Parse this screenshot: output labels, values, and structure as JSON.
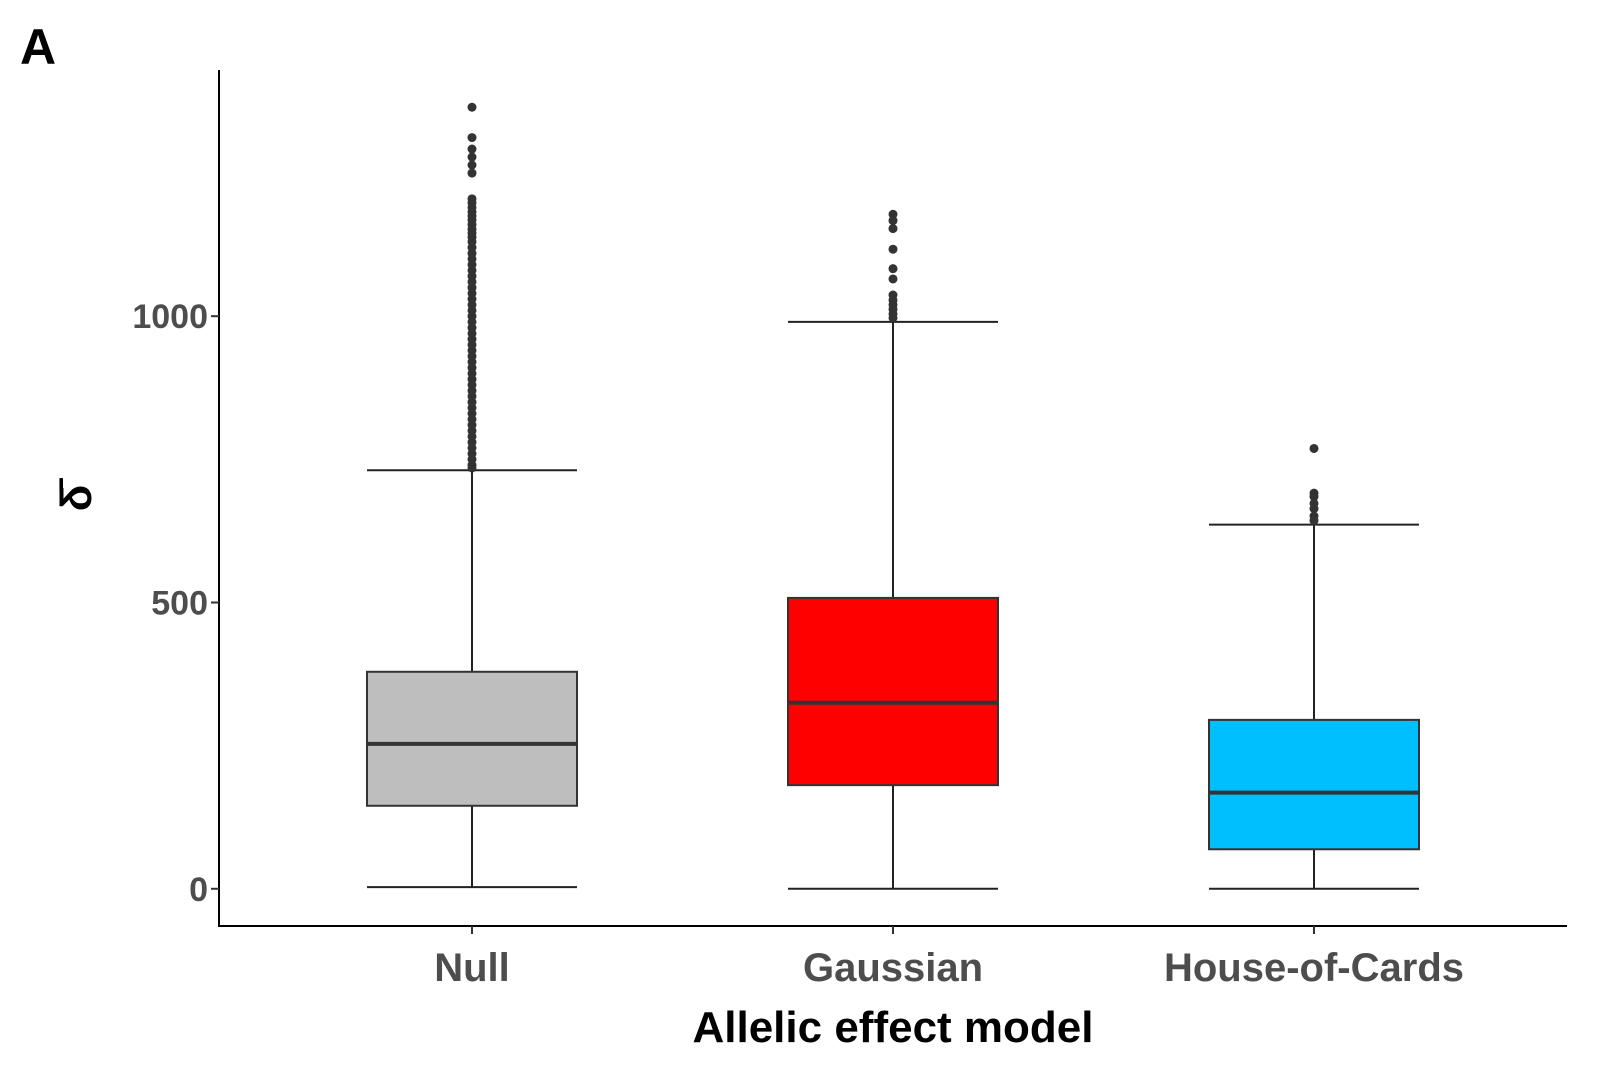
{
  "panel_label": "A",
  "chart_data": {
    "type": "box",
    "xlabel": "Allelic effect model",
    "ylabel": "δ̄",
    "ylim": [
      -65,
      1430
    ],
    "yticks": [
      0,
      500,
      1000
    ],
    "ytick_labels": [
      "0",
      "500",
      "1000"
    ],
    "grid": false,
    "categories": [
      "Null",
      "Gaussian",
      "House-of-Cards"
    ],
    "boxes": [
      {
        "category": "Null",
        "color": "#bebebe",
        "whisker_low": 3,
        "q1": 145,
        "median": 253,
        "q3": 379,
        "whisker_high": 731,
        "outliers": [
          1365,
          1312,
          1292,
          1278,
          1264,
          1250,
          1205,
          1198,
          1190,
          1182,
          1175,
          1168,
          1160,
          1152,
          1145,
          1138,
          1130,
          1120,
          1110,
          1100,
          1090,
          1080,
          1070,
          1060,
          1050,
          1040,
          1030,
          1020,
          1010,
          1000,
          990,
          980,
          970,
          960,
          950,
          940,
          930,
          920,
          910,
          900,
          890,
          880,
          870,
          860,
          850,
          840,
          830,
          820,
          810,
          800,
          790,
          780,
          770,
          760,
          750,
          740,
          735
        ]
      },
      {
        "category": "Gaussian",
        "color": "#ff0000",
        "whisker_low": 0,
        "q1": 181,
        "median": 325,
        "q3": 508,
        "whisker_high": 990,
        "outliers": [
          1178,
          1167,
          1153,
          1117,
          1083,
          1065,
          1037,
          1028,
          1020,
          1012,
          1004,
          997
        ]
      },
      {
        "category": "House-of-Cards",
        "color": "#00bfff",
        "whisker_low": 0,
        "q1": 69,
        "median": 168,
        "q3": 295,
        "whisker_high": 636,
        "outliers": [
          769,
          691,
          685,
          673,
          664,
          651,
          643
        ]
      }
    ]
  }
}
